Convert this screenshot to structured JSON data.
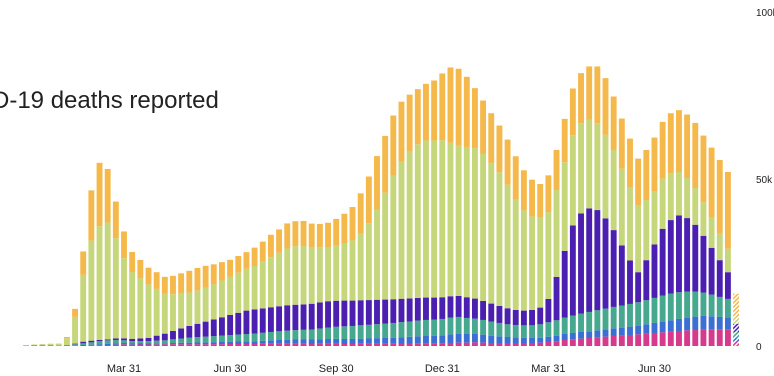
{
  "chart_data": {
    "type": "bar",
    "stacked": true,
    "title": "D-19 deaths reported",
    "xlabel": "",
    "ylabel": "",
    "ylim": [
      0,
      100000
    ],
    "y_ticks": [
      {
        "value": 0,
        "label": "0"
      },
      {
        "value": 50000,
        "label": "50k"
      },
      {
        "value": 100000,
        "label": "100k"
      }
    ],
    "x_ticks": [
      {
        "index": 12,
        "label": "Mar 31"
      },
      {
        "index": 25,
        "label": "Jun 30"
      },
      {
        "index": 38,
        "label": "Sep 30"
      },
      {
        "index": 51,
        "label": "Dec 31"
      },
      {
        "index": 64,
        "label": "Mar 31"
      },
      {
        "index": 77,
        "label": "Jun 30"
      }
    ],
    "grid": false,
    "legend": "none",
    "colors": [
      "#d63a8c",
      "#3b6fd4",
      "#46a98f",
      "#4b1fb0",
      "#c6d67a",
      "#f5b84a"
    ],
    "series": [
      {
        "values": [
          100,
          150,
          170,
          190,
          120,
          100,
          120,
          150,
          200,
          250,
          300,
          400,
          500,
          400,
          450,
          450,
          500,
          500,
          550,
          550,
          550,
          550,
          550,
          550,
          550,
          600,
          600,
          600,
          600,
          650,
          700,
          700,
          700,
          700,
          650,
          600,
          650,
          650,
          650,
          600,
          600,
          650,
          650,
          700,
          700,
          700,
          750,
          750,
          800,
          800,
          800,
          800,
          900,
          1000,
          1000,
          1100,
          1000,
          900,
          900,
          900,
          900,
          900,
          900,
          1000,
          1200,
          1400,
          1800,
          2000,
          2200,
          2400,
          2600,
          2800,
          3000,
          3100,
          3300,
          3500,
          3700,
          3900,
          4100,
          4300,
          4500,
          4700,
          4800,
          4900,
          5000,
          5000,
          5000
        ]
      },
      {
        "values": [
          0,
          0,
          0,
          0,
          0,
          50,
          100,
          150,
          200,
          300,
          400,
          450,
          400,
          350,
          300,
          300,
          300,
          300,
          350,
          400,
          450,
          500,
          550,
          600,
          650,
          700,
          750,
          800,
          850,
          900,
          1000,
          1100,
          1200,
          1250,
          1300,
          1350,
          1400,
          1450,
          1500,
          1500,
          1500,
          1550,
          1600,
          1650,
          1700,
          1800,
          1900,
          2000,
          2100,
          2200,
          2300,
          2400,
          2600,
          2700,
          2600,
          2500,
          2400,
          2200,
          2000,
          1800,
          1700,
          1600,
          1500,
          1500,
          1600,
          1700,
          1800,
          1900,
          2000,
          2000,
          2100,
          2200,
          2300,
          2400,
          2500,
          2600,
          2800,
          3000,
          3200,
          3400,
          3600,
          3800,
          4000,
          4100,
          3900,
          3700,
          3600
        ]
      },
      {
        "values": [
          0,
          0,
          0,
          0,
          0,
          100,
          300,
          500,
          700,
          900,
          1000,
          900,
          800,
          700,
          700,
          700,
          800,
          900,
          1100,
          1300,
          1500,
          1600,
          1700,
          1800,
          1900,
          2000,
          2100,
          2200,
          2300,
          2400,
          2500,
          2600,
          2700,
          2800,
          2900,
          3000,
          3200,
          3400,
          3600,
          3800,
          3900,
          4000,
          4100,
          4200,
          4300,
          4400,
          4500,
          4600,
          4700,
          4800,
          4800,
          4900,
          5000,
          5000,
          4800,
          4600,
          4400,
          4200,
          4000,
          3800,
          3700,
          3700,
          3800,
          4000,
          4300,
          4600,
          4900,
          5200,
          5500,
          5800,
          6000,
          6200,
          6400,
          6600,
          6800,
          7000,
          7200,
          7500,
          7800,
          8000,
          8000,
          7800,
          7500,
          7000,
          6500,
          6000,
          5500
        ]
      },
      {
        "values": [
          0,
          0,
          0,
          0,
          0,
          50,
          200,
          500,
          500,
          400,
          300,
          500,
          600,
          700,
          800,
          1000,
          1500,
          2000,
          2500,
          3000,
          3500,
          4000,
          4500,
          5000,
          5500,
          6000,
          6500,
          7000,
          7200,
          7300,
          7400,
          7500,
          7600,
          7600,
          7600,
          7700,
          7800,
          7900,
          7800,
          7700,
          7600,
          7500,
          7400,
          7300,
          7200,
          7100,
          7000,
          6900,
          6800,
          6700,
          6600,
          6500,
          6400,
          6300,
          6200,
          6000,
          5700,
          5400,
          5100,
          4800,
          4500,
          4400,
          4600,
          5000,
          7000,
          13000,
          20000,
          27000,
          30000,
          31000,
          30000,
          27000,
          23000,
          18000,
          13000,
          9000,
          12000,
          16000,
          20000,
          22000,
          23000,
          22000,
          20000,
          17000,
          14000,
          11000,
          8000
        ]
      },
      {
        "values": [
          200,
          300,
          400,
          500,
          600,
          2000,
          8000,
          20000,
          30000,
          34000,
          35000,
          30000,
          24000,
          20000,
          18000,
          16000,
          14000,
          12000,
          11000,
          10500,
          10000,
          10000,
          10200,
          10500,
          11000,
          11500,
          12000,
          12500,
          13000,
          14000,
          15000,
          16000,
          17000,
          17500,
          17500,
          17000,
          16500,
          16000,
          16500,
          17000,
          18000,
          20000,
          23000,
          27000,
          32000,
          37000,
          41000,
          44000,
          46000,
          47000,
          47000,
          47000,
          46000,
          45000,
          45000,
          45000,
          44000,
          42000,
          40000,
          37000,
          33000,
          30000,
          28000,
          27000,
          26000,
          26000,
          26500,
          27000,
          27000,
          26500,
          26000,
          25000,
          24000,
          23000,
          22000,
          20000,
          18000,
          16000,
          15000,
          14000,
          13000,
          12000,
          11000,
          10000,
          9000,
          8000,
          7000
        ]
      },
      {
        "values": [
          0,
          0,
          0,
          0,
          0,
          400,
          2400,
          7000,
          15000,
          19000,
          16000,
          11000,
          8000,
          6000,
          5500,
          5000,
          5000,
          5000,
          5500,
          6000,
          6500,
          6700,
          6500,
          6000,
          5500,
          5000,
          5000,
          5000,
          5500,
          6000,
          6700,
          7000,
          7500,
          7500,
          7500,
          7000,
          7000,
          7500,
          8000,
          9000,
          10000,
          12000,
          14000,
          16000,
          17000,
          18000,
          18000,
          17000,
          16500,
          17000,
          18000,
          20000,
          22500,
          23000,
          21000,
          18000,
          16000,
          15000,
          14000,
          13500,
          13000,
          12000,
          11000,
          10000,
          11000,
          12000,
          13000,
          14000,
          15000,
          16000,
          17000,
          17000,
          16000,
          15000,
          14500,
          14000,
          15000,
          16000,
          17000,
          18000,
          18500,
          19000,
          19500,
          20000,
          21000,
          22000,
          23000
        ]
      }
    ]
  }
}
